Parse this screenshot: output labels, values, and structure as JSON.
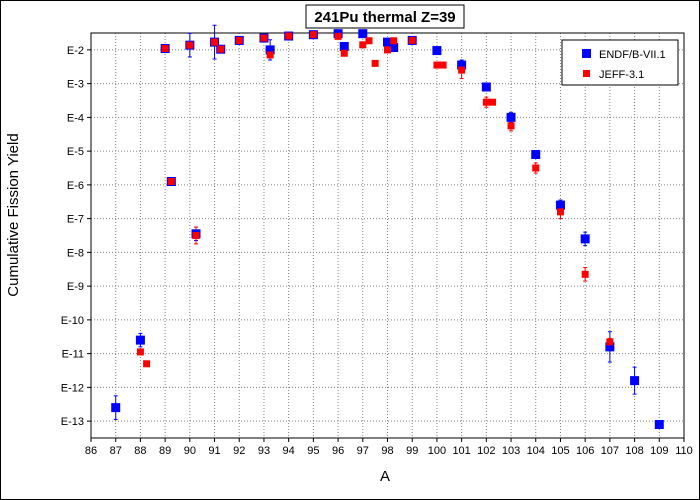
{
  "chart_data": {
    "type": "scatter",
    "title": "241Pu thermal Z=39",
    "xlabel": "A",
    "ylabel": "Cumulative Fission Yield",
    "xlim": [
      86,
      110
    ],
    "x_ticks": [
      86,
      87,
      88,
      89,
      90,
      91,
      92,
      93,
      94,
      95,
      96,
      97,
      98,
      99,
      100,
      101,
      102,
      103,
      104,
      105,
      106,
      107,
      108,
      109,
      110
    ],
    "y_scale": "log",
    "ylim_exponent": [
      -13.5,
      -1.5
    ],
    "y_ticks": [
      {
        "label": "E-2",
        "exp": -2
      },
      {
        "label": "E-3",
        "exp": -3
      },
      {
        "label": "E-4",
        "exp": -4
      },
      {
        "label": "E-5",
        "exp": -5
      },
      {
        "label": "E-6",
        "exp": -6
      },
      {
        "label": "E-7",
        "exp": -7
      },
      {
        "label": "E-8",
        "exp": -8
      },
      {
        "label": "E-9",
        "exp": -9
      },
      {
        "label": "E-10",
        "exp": -10
      },
      {
        "label": "E-11",
        "exp": -11
      },
      {
        "label": "E-12",
        "exp": -12
      },
      {
        "label": "E-13",
        "exp": -13
      }
    ],
    "grid": true,
    "legend_position": "top-right",
    "series": [
      {
        "name": "ENDF/B-VII.1",
        "color": "#0000ff",
        "marker": "square",
        "points": [
          {
            "x": 87.0,
            "y_exp": -12.6,
            "err": 0.35
          },
          {
            "x": 88.0,
            "y_exp": -10.6,
            "err": 0.2
          },
          {
            "x": 89.0,
            "y_exp": -1.96
          },
          {
            "x": 89.25,
            "y_exp": -5.9
          },
          {
            "x": 90.0,
            "y_exp": -1.86,
            "err": 0.35
          },
          {
            "x": 90.25,
            "y_exp": -7.45,
            "err": 0.2
          },
          {
            "x": 91.0,
            "y_exp": -1.77,
            "err": 0.5
          },
          {
            "x": 91.25,
            "y_exp": -1.98
          },
          {
            "x": 92.0,
            "y_exp": -1.72
          },
          {
            "x": 93.0,
            "y_exp": -1.65
          },
          {
            "x": 93.25,
            "y_exp": -2.0,
            "err": 0.3
          },
          {
            "x": 94.0,
            "y_exp": -1.59
          },
          {
            "x": 95.0,
            "y_exp": -1.55
          },
          {
            "x": 96.0,
            "y_exp": -1.52
          },
          {
            "x": 96.25,
            "y_exp": -1.9
          },
          {
            "x": 97.0,
            "y_exp": -1.52
          },
          {
            "x": 98.0,
            "y_exp": -1.77
          },
          {
            "x": 98.25,
            "y_exp": -1.93
          },
          {
            "x": 99.0,
            "y_exp": -1.72
          },
          {
            "x": 100.0,
            "y_exp": -2.02
          },
          {
            "x": 101.0,
            "y_exp": -2.45,
            "err": 0.15
          },
          {
            "x": 102.0,
            "y_exp": -3.1
          },
          {
            "x": 103.0,
            "y_exp": -4.0,
            "err": 0.15
          },
          {
            "x": 104.0,
            "y_exp": -5.1,
            "err": 0.1
          },
          {
            "x": 105.0,
            "y_exp": -6.6,
            "err": 0.15
          },
          {
            "x": 106.0,
            "y_exp": -7.6,
            "err": 0.2
          },
          {
            "x": 107.0,
            "y_exp": -10.8,
            "err": 0.45
          },
          {
            "x": 108.0,
            "y_exp": -11.8,
            "err": 0.4
          },
          {
            "x": 109.0,
            "y_exp": -13.1
          }
        ]
      },
      {
        "name": "JEFF-3.1",
        "color": "#ff0000",
        "marker": "square",
        "points": [
          {
            "x": 88.0,
            "y_exp": -10.95
          },
          {
            "x": 88.25,
            "y_exp": -11.3
          },
          {
            "x": 89.0,
            "y_exp": -1.96
          },
          {
            "x": 89.25,
            "y_exp": -5.9
          },
          {
            "x": 90.0,
            "y_exp": -1.86
          },
          {
            "x": 90.25,
            "y_exp": -7.5,
            "err": 0.25
          },
          {
            "x": 91.0,
            "y_exp": -1.77
          },
          {
            "x": 91.25,
            "y_exp": -1.98
          },
          {
            "x": 92.0,
            "y_exp": -1.72
          },
          {
            "x": 93.0,
            "y_exp": -1.65
          },
          {
            "x": 93.25,
            "y_exp": -2.15
          },
          {
            "x": 94.0,
            "y_exp": -1.59
          },
          {
            "x": 95.0,
            "y_exp": -1.55
          },
          {
            "x": 96.0,
            "y_exp": -1.6
          },
          {
            "x": 96.25,
            "y_exp": -2.1
          },
          {
            "x": 97.0,
            "y_exp": -1.85
          },
          {
            "x": 97.25,
            "y_exp": -1.73
          },
          {
            "x": 97.5,
            "y_exp": -2.4
          },
          {
            "x": 98.0,
            "y_exp": -2.0
          },
          {
            "x": 98.25,
            "y_exp": -1.73
          },
          {
            "x": 99.0,
            "y_exp": -1.72
          },
          {
            "x": 100.0,
            "y_exp": -2.45
          },
          {
            "x": 100.25,
            "y_exp": -2.45
          },
          {
            "x": 101.0,
            "y_exp": -2.6,
            "err": 0.25
          },
          {
            "x": 102.0,
            "y_exp": -3.55,
            "err": 0.15
          },
          {
            "x": 102.25,
            "y_exp": -3.55
          },
          {
            "x": 103.0,
            "y_exp": -4.25,
            "err": 0.15
          },
          {
            "x": 104.0,
            "y_exp": -5.5,
            "err": 0.15
          },
          {
            "x": 105.0,
            "y_exp": -6.8,
            "err": 0.2
          },
          {
            "x": 106.0,
            "y_exp": -8.65,
            "err": 0.2
          },
          {
            "x": 107.0,
            "y_exp": -10.65,
            "err": 0.1
          }
        ]
      }
    ]
  }
}
